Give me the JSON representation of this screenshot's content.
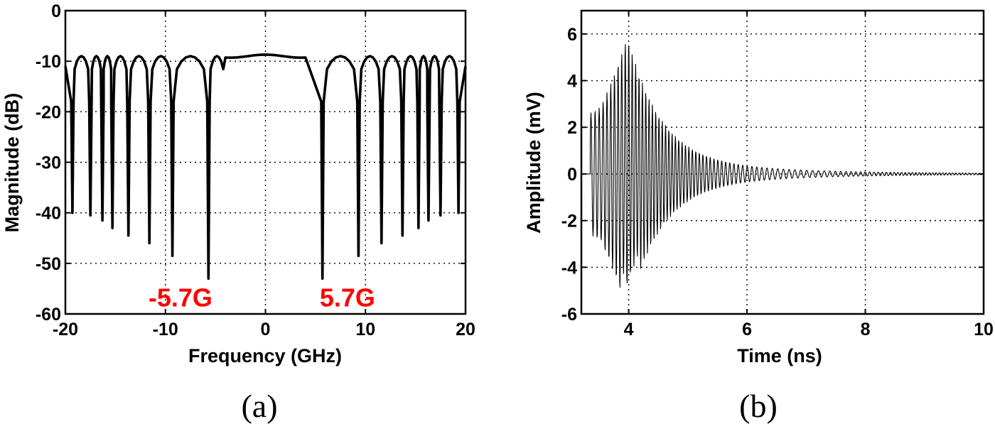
{
  "colors": {
    "annotation": "#ff0000",
    "line": "#000000",
    "background": "#ffffff"
  },
  "panels": [
    {
      "caption": "(a)"
    },
    {
      "caption": "(b)"
    }
  ],
  "chart_data": [
    {
      "type": "line",
      "xlabel": "Frequency (GHz)",
      "ylabel": "Magnitude (dB)",
      "xlim": [
        -20,
        20
      ],
      "ylim": [
        -60,
        0
      ],
      "xticks": [
        -20,
        -10,
        0,
        10,
        20
      ],
      "yticks": [
        0,
        -10,
        -20,
        -30,
        -40,
        -50,
        -60
      ],
      "grid": true,
      "series": [
        {
          "description": "sinc-like comb magnitude response, flat passband near -9 dB around 0 GHz",
          "passband_level_db": -9,
          "passband_edges_ghz": [
            -4.2,
            4.2
          ],
          "notches": [
            {
              "x": -19.3,
              "y": -40
            },
            {
              "x": -17.5,
              "y": -40.5
            },
            {
              "x": -16.3,
              "y": -41.5
            },
            {
              "x": -15.3,
              "y": -43
            },
            {
              "x": -13.7,
              "y": -44.5
            },
            {
              "x": -11.6,
              "y": -46
            },
            {
              "x": -9.3,
              "y": -48.5
            },
            {
              "x": -5.7,
              "y": -53
            },
            {
              "x": 5.7,
              "y": -53
            },
            {
              "x": 9.3,
              "y": -48.5
            },
            {
              "x": 11.6,
              "y": -46
            },
            {
              "x": 13.7,
              "y": -44.5
            },
            {
              "x": 15.3,
              "y": -43
            },
            {
              "x": 16.3,
              "y": -41.5
            },
            {
              "x": 17.5,
              "y": -40.5
            },
            {
              "x": 19.3,
              "y": -40
            }
          ]
        }
      ],
      "annotations": [
        {
          "text": "-5.7G",
          "x": -8.5,
          "y": -58.5
        },
        {
          "text": "5.7G",
          "x": 8.2,
          "y": -58.5
        }
      ]
    },
    {
      "type": "line",
      "xlabel": "Time (ns)",
      "ylabel": "Amplitude (mV)",
      "xlim": [
        3.2,
        10
      ],
      "ylim": [
        -6,
        7
      ],
      "xticks": [
        4,
        6,
        8,
        10
      ],
      "yticks": [
        6,
        4,
        2,
        0,
        -2,
        -4,
        -6
      ],
      "grid": true,
      "series": [
        {
          "description": "chirped oscillating pulse, onset ~3.35 ns, peak ~5.7 mV at ~3.95 ns, decaying to ~0 by 10 ns",
          "onset_ns": 3.35,
          "peak": {
            "x": 3.95,
            "y": 5.7
          },
          "min": {
            "x": 3.88,
            "y": -4.7
          }
        }
      ]
    }
  ]
}
